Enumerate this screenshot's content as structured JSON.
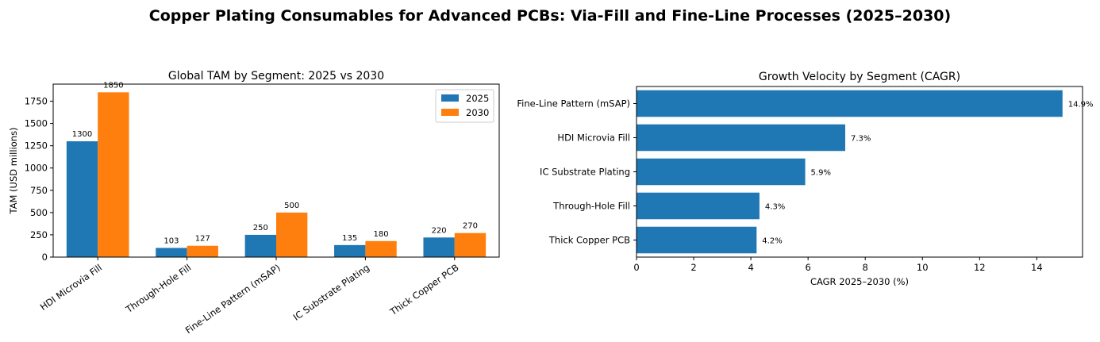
{
  "suptitle": "Copper Plating Consumables for Advanced PCBs: Via-Fill and Fine-Line Processes (2025–2030)",
  "colors": {
    "s2025": "#1f77b4",
    "s2030": "#ff7f0e",
    "hbar": "#1f77b4"
  },
  "chart_data": [
    {
      "type": "bar",
      "title": "Global TAM by Segment: 2025 vs 2030",
      "xlabel": "",
      "ylabel": "TAM (USD millions)",
      "categories": [
        "HDI Microvia Fill",
        "Through-Hole Fill",
        "Fine-Line Pattern (mSAP)",
        "IC Substrate Plating",
        "Thick Copper PCB"
      ],
      "series": [
        {
          "name": "2025",
          "values": [
            1300,
            103,
            250,
            135,
            220
          ]
        },
        {
          "name": "2030",
          "values": [
            1850,
            127,
            500,
            180,
            270
          ]
        }
      ],
      "ylim": [
        0,
        1942
      ],
      "yticks": [
        0,
        250,
        500,
        750,
        1000,
        1250,
        1500,
        1750
      ],
      "legend": "top-right",
      "grid": false
    },
    {
      "type": "bar",
      "orientation": "horizontal",
      "title": "Growth Velocity by Segment (CAGR)",
      "xlabel": "CAGR 2025–2030 (%)",
      "ylabel": "",
      "categories": [
        "Fine-Line Pattern (mSAP)",
        "HDI Microvia Fill",
        "IC Substrate Plating",
        "Through-Hole Fill",
        "Thick Copper PCB"
      ],
      "values": [
        14.9,
        7.3,
        5.9,
        4.3,
        4.2
      ],
      "value_labels": [
        "14.9%",
        "7.3%",
        "5.9%",
        "4.3%",
        "4.2%"
      ],
      "xlim": [
        0,
        15.6
      ],
      "xticks": [
        0,
        2,
        4,
        6,
        8,
        10,
        12,
        14
      ],
      "grid": false
    }
  ]
}
